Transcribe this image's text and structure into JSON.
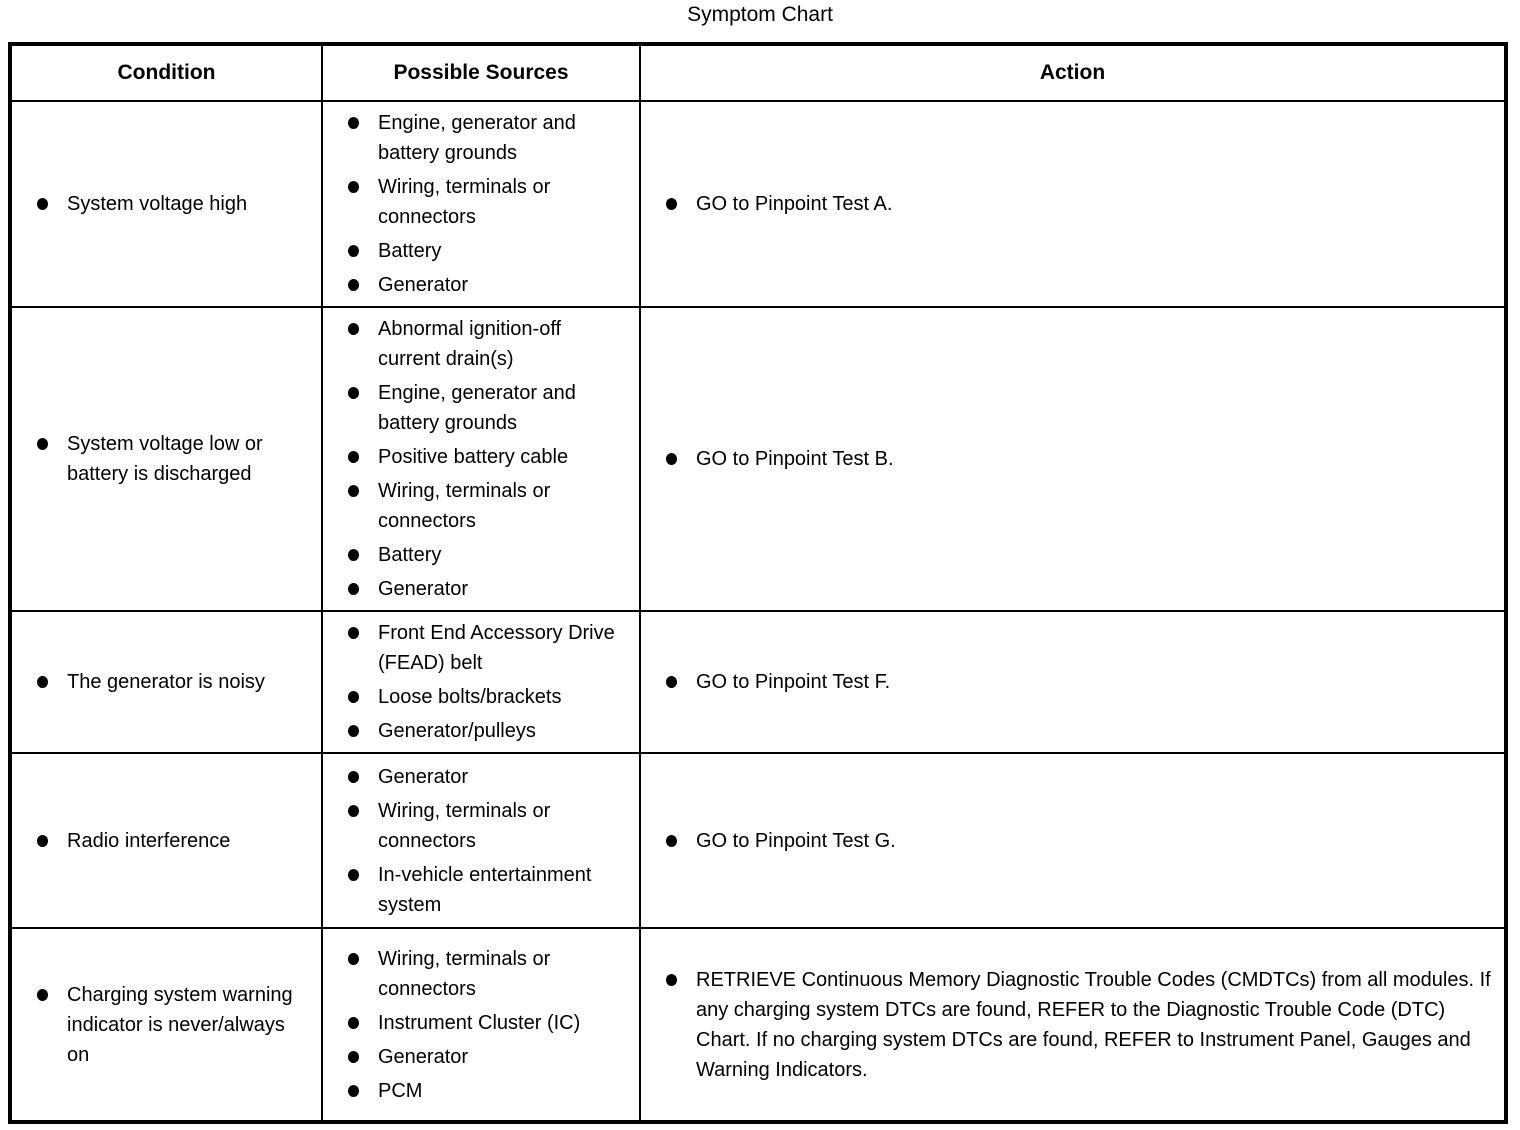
{
  "title": "Symptom Chart",
  "accent_colors": {
    "text": "#000000",
    "background": "#ffffff",
    "border": "#000000"
  },
  "table": {
    "columns": [
      "Condition",
      "Possible Sources",
      "Action"
    ],
    "rows": [
      {
        "condition": "System voltage high",
        "sources": [
          "Engine, generator and battery grounds",
          "Wiring, terminals or connectors",
          "Battery",
          "Generator"
        ],
        "action": "GO to Pinpoint Test A."
      },
      {
        "condition": "System voltage low or battery is discharged",
        "sources": [
          "Abnormal ignition-off current drain(s)",
          "Engine, generator and battery grounds",
          "Positive battery cable",
          "Wiring, terminals or connectors",
          "Battery",
          "Generator"
        ],
        "action": "GO to Pinpoint Test B."
      },
      {
        "condition": "The generator is noisy",
        "sources": [
          "Front End Accessory Drive (FEAD) belt",
          "Loose bolts/brackets",
          "Generator/pulleys"
        ],
        "action": "GO to Pinpoint Test F."
      },
      {
        "condition": "Radio interference",
        "sources": [
          "Generator",
          "Wiring, terminals or connectors",
          "In-vehicle entertainment system"
        ],
        "action": "GO to Pinpoint Test G."
      },
      {
        "condition": "Charging system warning indicator is never/always on",
        "sources": [
          "Wiring, terminals or connectors",
          "Instrument Cluster (IC)",
          "Generator",
          "PCM"
        ],
        "action": "RETRIEVE Continuous Memory Diagnostic Trouble Codes (CMDTCs) from all modules. If any charging system DTCs are found, REFER to the Diagnostic Trouble Code (DTC) Chart. If no charging system DTCs are found, REFER to Instrument Panel, Gauges and Warning Indicators."
      }
    ]
  }
}
